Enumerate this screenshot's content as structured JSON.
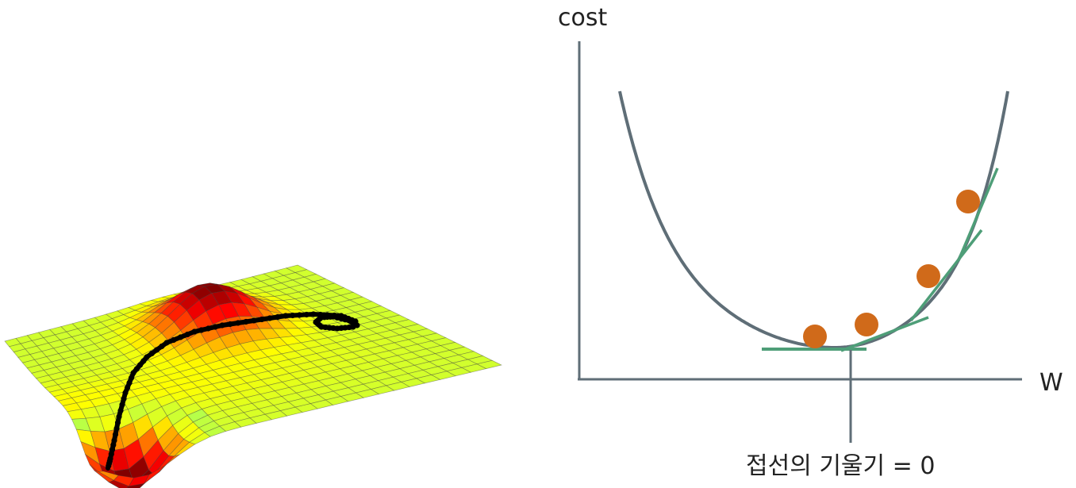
{
  "gradient_diagram": {
    "y_axis_label": "cost",
    "x_axis_label": "W",
    "tangent_caption": "접선의 기울기 = 0",
    "ball_count": 4
  },
  "colors": {
    "axis": "#5f6e77",
    "curve": "#5f6e77",
    "tangent": "#4e9e78",
    "ball": "#d06a1a",
    "path": "#000000"
  },
  "surface_plot": {
    "colormap": "jet",
    "path_color": "black"
  }
}
